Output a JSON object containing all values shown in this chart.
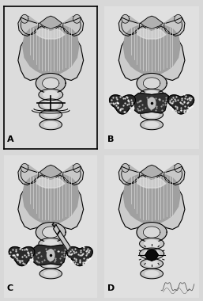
{
  "fig_width": 2.57,
  "fig_height": 3.8,
  "dpi": 100,
  "bg_color": "#ffffff",
  "panel_labels": [
    "A",
    "B",
    "C",
    "D"
  ],
  "panel_label_fontsize": 8,
  "spine_color": "#000000",
  "panel_A_has_box": true,
  "overall_bg": "#d8d8d8"
}
